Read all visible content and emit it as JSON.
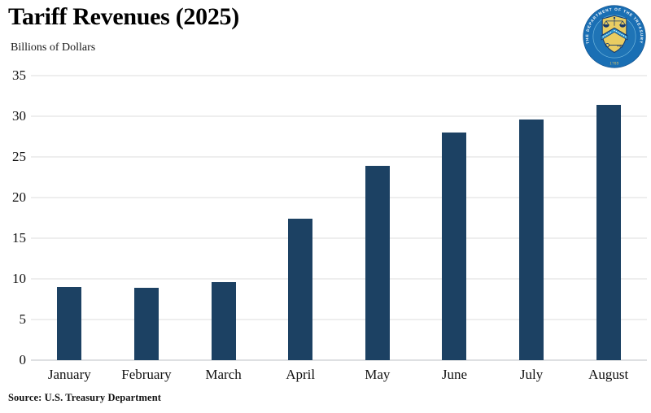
{
  "header": {
    "title": "Tariff Revenues (2025)",
    "subtitle": "Billions of Dollars"
  },
  "source_note": "Source: U.S. Treasury Department",
  "logo": {
    "name": "us-treasury-seal",
    "ring_text": "THE DEPARTMENT OF THE TREASURY",
    "year": "1789"
  },
  "colors": {
    "bar": "#1c4163",
    "gridline": "#dcdcdc",
    "zero_line": "#bcc1c6",
    "seal_ring_blue": "#1a6fb4",
    "seal_navy": "#17386b",
    "seal_gold": "#e9cd62",
    "seal_light_blue": "#2f9ad2"
  },
  "chart_data": {
    "type": "bar",
    "title": "Tariff Revenues (2025)",
    "ylabel": "Billions of Dollars",
    "xlabel": "",
    "categories": [
      "January",
      "February",
      "March",
      "April",
      "May",
      "June",
      "July",
      "August"
    ],
    "values": [
      9.0,
      8.9,
      9.6,
      17.4,
      23.9,
      28.0,
      29.6,
      31.4
    ],
    "ylim": [
      0,
      35
    ],
    "yticks": [
      0,
      5,
      10,
      15,
      20,
      25,
      30,
      35
    ],
    "grid": true,
    "legend": false,
    "source": "Source: U.S. Treasury Department"
  }
}
